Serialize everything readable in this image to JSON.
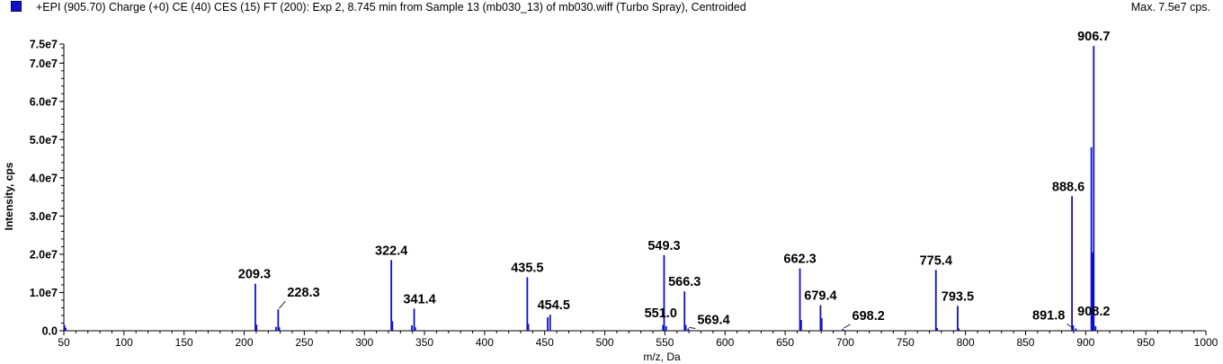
{
  "header": {
    "title": "+EPI (905.70) Charge (+0) CE (40) CES (15) FT (200): Exp 2, 8.745 min from Sample 13 (mb030_13) of mb030.wiff (Turbo Spray), Centroided",
    "max": "Max. 7.5e7 cps.",
    "series_color": "#1010c8"
  },
  "chart_data": {
    "type": "bar",
    "xlabel": "m/z, Da",
    "ylabel": "Intensity, cps",
    "xlim": [
      50,
      1000
    ],
    "ylim": [
      0,
      75000000
    ],
    "x_ticks": [
      50,
      100,
      150,
      200,
      250,
      300,
      350,
      400,
      450,
      500,
      550,
      600,
      650,
      700,
      750,
      800,
      850,
      900,
      950,
      1000
    ],
    "x_tick_labels": [
      "50",
      "100",
      "150",
      "200",
      "250",
      "300",
      "350",
      "400",
      "450",
      "500",
      "550",
      "600",
      "650",
      "700",
      "750",
      "800",
      "850",
      "900",
      "950",
      "1000"
    ],
    "y_ticks": [
      0,
      10000000,
      20000000,
      30000000,
      40000000,
      50000000,
      60000000,
      70000000,
      75000000
    ],
    "y_tick_labels": [
      "0.0",
      "1.0e7",
      "2.0e7",
      "3.0e7",
      "4.0e7",
      "5.0e7",
      "6.0e7",
      "7.0e7",
      "7.5e7"
    ],
    "grid": false,
    "color": "#1010c8",
    "peaks": [
      {
        "mz": 50.5,
        "intensity": 1500000
      },
      {
        "mz": 51.5,
        "intensity": 800000
      },
      {
        "mz": 209.3,
        "intensity": 12300000
      },
      {
        "mz": 210.3,
        "intensity": 1600000
      },
      {
        "mz": 226.5,
        "intensity": 1000000
      },
      {
        "mz": 228.3,
        "intensity": 5600000
      },
      {
        "mz": 229.2,
        "intensity": 900000
      },
      {
        "mz": 322.4,
        "intensity": 18500000
      },
      {
        "mz": 323.3,
        "intensity": 2500000
      },
      {
        "mz": 339.5,
        "intensity": 1400000
      },
      {
        "mz": 341.4,
        "intensity": 5800000
      },
      {
        "mz": 342.3,
        "intensity": 900000
      },
      {
        "mz": 435.5,
        "intensity": 14000000
      },
      {
        "mz": 436.4,
        "intensity": 1800000
      },
      {
        "mz": 452.5,
        "intensity": 3500000
      },
      {
        "mz": 454.5,
        "intensity": 4200000
      },
      {
        "mz": 548.4,
        "intensity": 1500000
      },
      {
        "mz": 549.3,
        "intensity": 19800000
      },
      {
        "mz": 551.0,
        "intensity": 1200000
      },
      {
        "mz": 566.3,
        "intensity": 10300000
      },
      {
        "mz": 567.3,
        "intensity": 1500000
      },
      {
        "mz": 569.4,
        "intensity": 600000
      },
      {
        "mz": 662.3,
        "intensity": 16300000
      },
      {
        "mz": 663.3,
        "intensity": 2800000
      },
      {
        "mz": 679.4,
        "intensity": 6700000
      },
      {
        "mz": 680.4,
        "intensity": 3300000
      },
      {
        "mz": 698.2,
        "intensity": 500000
      },
      {
        "mz": 775.4,
        "intensity": 15900000
      },
      {
        "mz": 776.4,
        "intensity": 700000
      },
      {
        "mz": 793.5,
        "intensity": 6500000
      },
      {
        "mz": 794.4,
        "intensity": 600000
      },
      {
        "mz": 888.6,
        "intensity": 35200000
      },
      {
        "mz": 889.6,
        "intensity": 1400000
      },
      {
        "mz": 891.8,
        "intensity": 600000
      },
      {
        "mz": 904.7,
        "intensity": 48000000
      },
      {
        "mz": 905.7,
        "intensity": 20500000
      },
      {
        "mz": 906.7,
        "intensity": 74500000
      },
      {
        "mz": 908.2,
        "intensity": 1200000
      }
    ],
    "annotations": [
      {
        "text": "209.3",
        "mz": 209.3,
        "intensity": 12300000
      },
      {
        "text": "228.3",
        "mz": 228.3,
        "intensity": 5600000
      },
      {
        "text": "322.4",
        "mz": 322.4,
        "intensity": 18500000
      },
      {
        "text": "341.4",
        "mz": 341.4,
        "intensity": 5800000
      },
      {
        "text": "435.5",
        "mz": 435.5,
        "intensity": 14000000
      },
      {
        "text": "454.5",
        "mz": 454.5,
        "intensity": 4200000
      },
      {
        "text": "549.3",
        "mz": 549.3,
        "intensity": 19800000
      },
      {
        "text": "551.0",
        "mz": 551.0,
        "intensity": 1200000
      },
      {
        "text": "566.3",
        "mz": 566.3,
        "intensity": 10300000
      },
      {
        "text": "569.4",
        "mz": 569.4,
        "intensity": 600000
      },
      {
        "text": "662.3",
        "mz": 662.3,
        "intensity": 16300000
      },
      {
        "text": "679.4",
        "mz": 679.4,
        "intensity": 6700000
      },
      {
        "text": "698.2",
        "mz": 698.2,
        "intensity": 500000
      },
      {
        "text": "775.4",
        "mz": 775.4,
        "intensity": 15900000
      },
      {
        "text": "793.5",
        "mz": 793.5,
        "intensity": 6500000
      },
      {
        "text": "888.6",
        "mz": 888.6,
        "intensity": 35200000
      },
      {
        "text": "891.8",
        "mz": 891.8,
        "intensity": 600000
      },
      {
        "text": "906.7",
        "mz": 906.7,
        "intensity": 74500000
      },
      {
        "text": "908.2",
        "mz": 908.2,
        "intensity": 1200000
      }
    ]
  }
}
